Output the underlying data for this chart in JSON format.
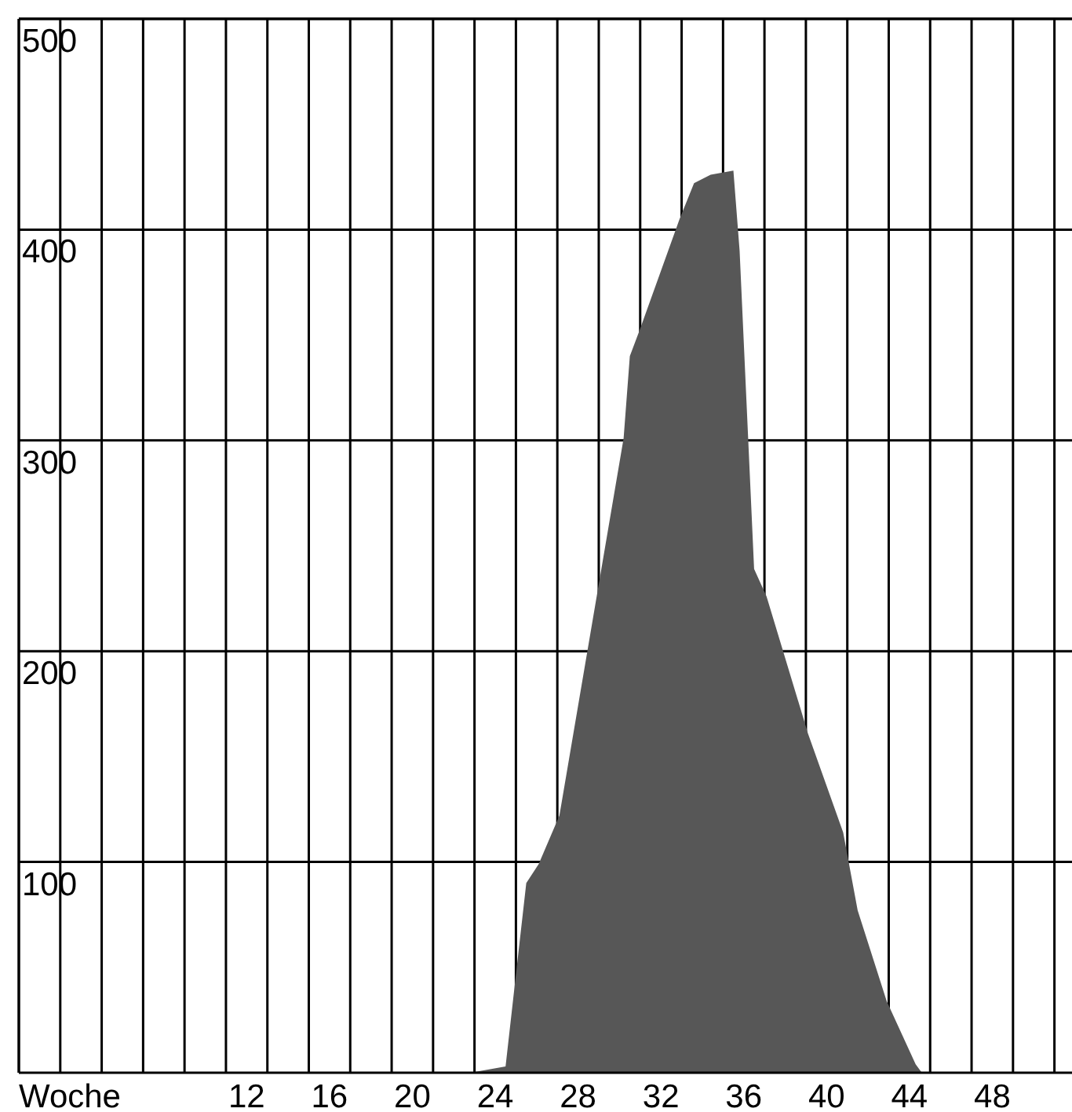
{
  "chart_data": {
    "type": "area",
    "xlabel": "Woche",
    "color": "#575757",
    "x": [
      22.8,
      24.5,
      25.5,
      26.1,
      27.1,
      28.9,
      30.2,
      30.5,
      31,
      32.9,
      33.6,
      34.4,
      35.5,
      35.8,
      36.5,
      37.1,
      39.1,
      40.8,
      41.5,
      42.9,
      44.3,
      44.6
    ],
    "values": [
      0,
      3,
      90,
      99,
      122,
      226,
      301,
      340,
      353,
      405,
      422,
      426,
      428,
      390,
      239,
      226,
      161,
      114,
      77,
      34,
      4,
      0
    ],
    "xlim": [
      1,
      52
    ],
    "xticks": [
      {
        "value": 1,
        "label": null
      },
      {
        "value": 3,
        "label": null
      },
      {
        "value": 5,
        "label": null
      },
      {
        "value": 7,
        "label": null
      },
      {
        "value": 9,
        "label": null
      },
      {
        "value": 11,
        "label": null
      },
      {
        "value": 13,
        "label": null
      },
      {
        "value": 15,
        "label": null
      },
      {
        "value": 17,
        "label": null
      },
      {
        "value": 19,
        "label": null
      },
      {
        "value": 21,
        "label": null
      },
      {
        "value": 23,
        "label": null
      },
      {
        "value": 25,
        "label": null
      },
      {
        "value": 27,
        "label": null
      },
      {
        "value": 29,
        "label": null
      },
      {
        "value": 31,
        "label": null
      },
      {
        "value": 33,
        "label": null
      },
      {
        "value": 35,
        "label": null
      },
      {
        "value": 37,
        "label": null
      },
      {
        "value": 39,
        "label": null
      },
      {
        "value": 41,
        "label": null
      },
      {
        "value": 43,
        "label": null
      },
      {
        "value": 45,
        "label": null
      },
      {
        "value": 47,
        "label": null
      },
      {
        "value": 49,
        "label": null
      },
      {
        "value": 51,
        "label": null
      },
      12,
      16,
      20,
      24,
      28,
      32,
      36,
      40,
      44,
      48
    ],
    "ylim": [
      0,
      500
    ],
    "yticks": [
      100,
      200,
      300,
      400,
      500
    ],
    "grid": true
  }
}
